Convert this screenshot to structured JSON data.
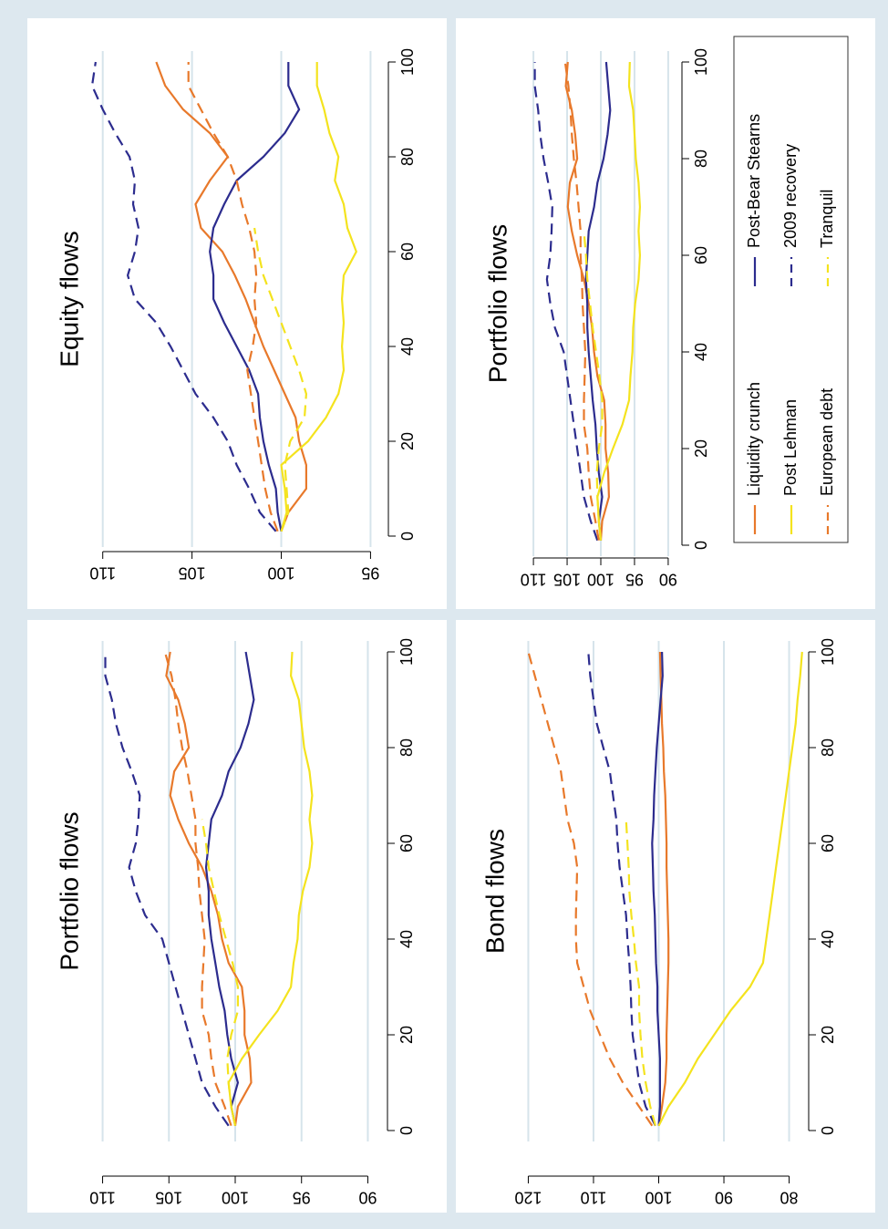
{
  "chart_data": [
    {
      "type": "line",
      "title": "Portfolio flows",
      "x": [
        1,
        5,
        10,
        15,
        20,
        25,
        30,
        35,
        40,
        45,
        50,
        55,
        60,
        65,
        70,
        75,
        80,
        85,
        90,
        95,
        100
      ],
      "xlim": [
        0,
        100
      ],
      "xticks": [
        0,
        20,
        40,
        60,
        80,
        100
      ],
      "ylim": [
        89,
        111
      ],
      "yticks": [
        90,
        95,
        100,
        105,
        110
      ],
      "grid": true,
      "series": [
        {
          "name": "Liquidity crunch",
          "color": "#e8792b",
          "style": "solid",
          "values": [
            100,
            99.8,
            98.8,
            98.9,
            99.3,
            99.3,
            99.5,
            100.5,
            101,
            101.3,
            101.8,
            102.5,
            103.5,
            104.3,
            104.9,
            104.6,
            103.5,
            103.8,
            104.3,
            105.2,
            104.9
          ]
        },
        {
          "name": "Post-Bear Stearns",
          "color": "#2c2c8e",
          "style": "solid",
          "values": [
            100,
            100.3,
            99.8,
            100.3,
            100.6,
            100.8,
            101.2,
            101.5,
            101.8,
            102,
            102,
            102.2,
            102,
            101.8,
            101,
            100.5,
            99.6,
            99,
            98.6,
            98.9,
            99.2
          ]
        },
        {
          "name": "Post Lehman",
          "color": "#f4e31e",
          "style": "solid",
          "values": [
            100,
            100.3,
            100.5,
            99.5,
            98.2,
            96.8,
            95.8,
            95.6,
            95.3,
            95.2,
            94.9,
            94.4,
            94.2,
            94.4,
            94.2,
            94.4,
            94.8,
            95,
            95.2,
            95.8,
            95.7
          ]
        },
        {
          "name": "2009 recovery",
          "color": "#2c2c8e",
          "style": "dashed",
          "values": [
            100.5,
            101.5,
            102.5,
            103,
            103.5,
            104,
            104.5,
            105,
            105.5,
            106.8,
            107.5,
            108,
            107.5,
            107.3,
            107.2,
            107.8,
            108.5,
            109,
            109.3,
            109.8,
            109.8
          ]
        },
        {
          "name": "European debt",
          "color": "#e8792b",
          "style": "dashed",
          "values": [
            100.3,
            100.8,
            101.5,
            101.8,
            102,
            102.5,
            102.5,
            102.4,
            102.3,
            102.5,
            102.7,
            102.8,
            103,
            103,
            103.3,
            103.6,
            104,
            104.3,
            104.5,
            104.8,
            105.3
          ]
        },
        {
          "name": "Tranquil",
          "color": "#f4e31e",
          "style": "dashed",
          "values": [
            100,
            100.3,
            100.5,
            100.6,
            100.3,
            99.8,
            99.8,
            100.2,
            100.7,
            101.2,
            101.6,
            102,
            102.2,
            102.5,
            null,
            null,
            null,
            null,
            null,
            null,
            null
          ]
        }
      ]
    },
    {
      "type": "line",
      "title": "Equity flows",
      "x": [
        1,
        5,
        10,
        15,
        20,
        25,
        30,
        35,
        40,
        45,
        50,
        55,
        60,
        65,
        70,
        75,
        80,
        85,
        90,
        95,
        100
      ],
      "xlim": [
        0,
        100
      ],
      "xticks": [
        0,
        20,
        40,
        60,
        80,
        100
      ],
      "ylim": [
        94,
        110.7
      ],
      "yticks": [
        95,
        100,
        105,
        110
      ],
      "grid": true,
      "series": [
        {
          "name": "Liquidity crunch",
          "color": "#e8792b",
          "style": "solid",
          "values": [
            100,
            99.6,
            98.6,
            98.6,
            99,
            99.2,
            99.8,
            100.4,
            101,
            101.5,
            102,
            102.6,
            103.3,
            104.5,
            104.8,
            104,
            103,
            104,
            105.5,
            106.5,
            107
          ]
        },
        {
          "name": "Post-Bear Stearns",
          "color": "#2c2c8e",
          "style": "solid",
          "values": [
            100,
            100.2,
            100.3,
            100.7,
            101,
            101.2,
            101.3,
            101.8,
            102.5,
            103.2,
            103.8,
            103.8,
            104,
            103.8,
            103.2,
            102.5,
            101,
            99.8,
            99,
            99.6,
            99.6
          ]
        },
        {
          "name": "Post Lehman",
          "color": "#f4e31e",
          "style": "solid",
          "values": [
            100,
            99.7,
            99.8,
            100,
            98.5,
            97.5,
            96.8,
            96.5,
            96.6,
            96.5,
            96.6,
            96.5,
            95.8,
            96.3,
            96.5,
            97,
            96.8,
            97.3,
            97.6,
            98,
            98
          ]
        },
        {
          "name": "2009 recovery",
          "color": "#2c2c8e",
          "style": "dashed",
          "values": [
            100.3,
            101.2,
            101.8,
            102.5,
            103,
            103.8,
            104.8,
            105.5,
            106.2,
            107,
            108.2,
            108.6,
            108.2,
            108,
            108.3,
            108.2,
            108.5,
            109.3,
            110,
            110.6,
            110.4
          ]
        },
        {
          "name": "European debt",
          "color": "#e8792b",
          "style": "dashed",
          "values": [
            100.2,
            100.6,
            100.9,
            101.1,
            101.3,
            101.5,
            101.7,
            101.9,
            101.6,
            101.4,
            101.5,
            101.4,
            101.5,
            101.8,
            102.2,
            102.5,
            103,
            103.8,
            104.5,
            105.2,
            105.2
          ]
        },
        {
          "name": "Tranquil",
          "color": "#f4e31e",
          "style": "dashed",
          "values": [
            100,
            99.6,
            99.7,
            99.8,
            99.5,
            98.7,
            98.6,
            99,
            99.5,
            100,
            100.5,
            101,
            101.3,
            101.5,
            null,
            null,
            null,
            null,
            null,
            null,
            null
          ]
        }
      ]
    },
    {
      "type": "line",
      "title": "Bond flows",
      "x": [
        1,
        5,
        10,
        15,
        20,
        25,
        30,
        35,
        40,
        45,
        50,
        55,
        60,
        65,
        70,
        75,
        80,
        85,
        90,
        95,
        100
      ],
      "xlim": [
        0,
        100
      ],
      "xticks": [
        0,
        20,
        40,
        60,
        80,
        100
      ],
      "ylim": [
        77,
        123
      ],
      "yticks": [
        80,
        90,
        100,
        110,
        120
      ],
      "grid": true,
      "series": [
        {
          "name": "Liquidity crunch",
          "color": "#e8792b",
          "style": "solid",
          "values": [
            100,
            99.5,
            99,
            98.8,
            98.8,
            98.7,
            98.6,
            98.5,
            98.5,
            98.6,
            98.7,
            98.8,
            98.8,
            98.9,
            99,
            99.2,
            99.3,
            99.5,
            99.6,
            99.7,
            99.8
          ]
        },
        {
          "name": "Post-Bear Stearns",
          "color": "#2c2c8e",
          "style": "solid",
          "values": [
            100,
            99.8,
            99.8,
            99.8,
            100,
            100.2,
            100.2,
            100.4,
            100.5,
            100.6,
            100.8,
            100.9,
            101,
            100.8,
            100.7,
            100.5,
            100.3,
            100,
            99.7,
            99.4,
            99.5
          ]
        },
        {
          "name": "Post Lehman",
          "color": "#f4e31e",
          "style": "solid",
          "values": [
            100,
            98.5,
            96,
            94,
            91.5,
            89,
            86,
            84,
            83.5,
            83,
            82.5,
            82,
            81.5,
            81,
            80.5,
            80,
            79.5,
            79,
            78.7,
            78.3,
            78
          ]
        },
        {
          "name": "2009 recovery",
          "color": "#2c2c8e",
          "style": "dashed",
          "values": [
            100.5,
            102,
            103,
            103.5,
            104,
            104.2,
            104.3,
            104.5,
            104.8,
            105,
            105.5,
            106,
            106.3,
            106.5,
            107,
            107.5,
            108.5,
            109.5,
            110,
            110.5,
            110.8
          ]
        },
        {
          "name": "European debt",
          "color": "#e8792b",
          "style": "dashed",
          "values": [
            101,
            103,
            105.5,
            107.5,
            109,
            110.5,
            111.5,
            112.5,
            112.7,
            112.7,
            112.6,
            112.5,
            113,
            114,
            114.5,
            115,
            116,
            117,
            118,
            119,
            120
          ]
        },
        {
          "name": "Tranquil",
          "color": "#f4e31e",
          "style": "dashed",
          "values": [
            100.5,
            101.3,
            102,
            102.5,
            102.8,
            103,
            103,
            103.5,
            103.8,
            104.2,
            104.5,
            104.6,
            104.8,
            105,
            null,
            null,
            null,
            null,
            null,
            null,
            null
          ]
        }
      ]
    },
    {
      "type": "line",
      "title": "Portfolio flows",
      "x": [
        1,
        5,
        10,
        15,
        20,
        25,
        30,
        35,
        40,
        45,
        50,
        55,
        60,
        65,
        70,
        75,
        80,
        85,
        90,
        95,
        100
      ],
      "xlim": [
        0,
        100
      ],
      "xticks": [
        0,
        20,
        40,
        60,
        80,
        100
      ],
      "ylim": [
        88.5,
        111.5
      ],
      "yticks": [
        90,
        95,
        100,
        105,
        110
      ],
      "grid": true,
      "series": [
        {
          "name": "Liquidity crunch",
          "color": "#e8792b",
          "style": "solid",
          "values": [
            100,
            99.8,
            98.8,
            98.9,
            99.3,
            99.3,
            99.5,
            100.5,
            101,
            101.3,
            101.8,
            102.5,
            103.5,
            104.3,
            104.9,
            104.6,
            103.5,
            103.8,
            104.3,
            105.2,
            104.9
          ]
        },
        {
          "name": "Post-Bear Stearns",
          "color": "#2c2c8e",
          "style": "solid",
          "values": [
            100,
            100.3,
            99.8,
            100.3,
            100.6,
            100.8,
            101.2,
            101.5,
            101.8,
            102,
            102,
            102.2,
            102,
            101.8,
            101,
            100.5,
            99.6,
            99,
            98.6,
            98.9,
            99.2
          ]
        },
        {
          "name": "Post Lehman",
          "color": "#f4e31e",
          "style": "solid",
          "values": [
            100,
            100.3,
            100.5,
            99.5,
            98.2,
            96.8,
            95.8,
            95.6,
            95.3,
            95.2,
            94.9,
            94.4,
            94.2,
            94.4,
            94.2,
            94.4,
            94.8,
            95,
            95.2,
            95.8,
            95.7
          ]
        },
        {
          "name": "2009 recovery",
          "color": "#2c2c8e",
          "style": "dashed",
          "values": [
            100.5,
            101.5,
            102.5,
            103,
            103.5,
            104,
            104.5,
            105,
            105.5,
            106.8,
            107.5,
            108,
            107.5,
            107.3,
            107.2,
            107.8,
            108.5,
            109,
            109.3,
            109.8,
            109.8
          ]
        },
        {
          "name": "European debt",
          "color": "#e8792b",
          "style": "dashed",
          "values": [
            100.3,
            100.8,
            101.5,
            101.8,
            102,
            102.5,
            102.5,
            102.4,
            102.3,
            102.5,
            102.7,
            102.8,
            103,
            103,
            103.3,
            103.6,
            104,
            104.3,
            104.5,
            104.8,
            105.3
          ]
        },
        {
          "name": "Tranquil",
          "color": "#f4e31e",
          "style": "dashed",
          "values": [
            100,
            100.3,
            100.5,
            100.6,
            100.3,
            99.8,
            99.8,
            100.2,
            100.7,
            101.2,
            101.6,
            102,
            102.2,
            102.5,
            null,
            null,
            null,
            null,
            null,
            null,
            null
          ]
        }
      ]
    }
  ]
}
